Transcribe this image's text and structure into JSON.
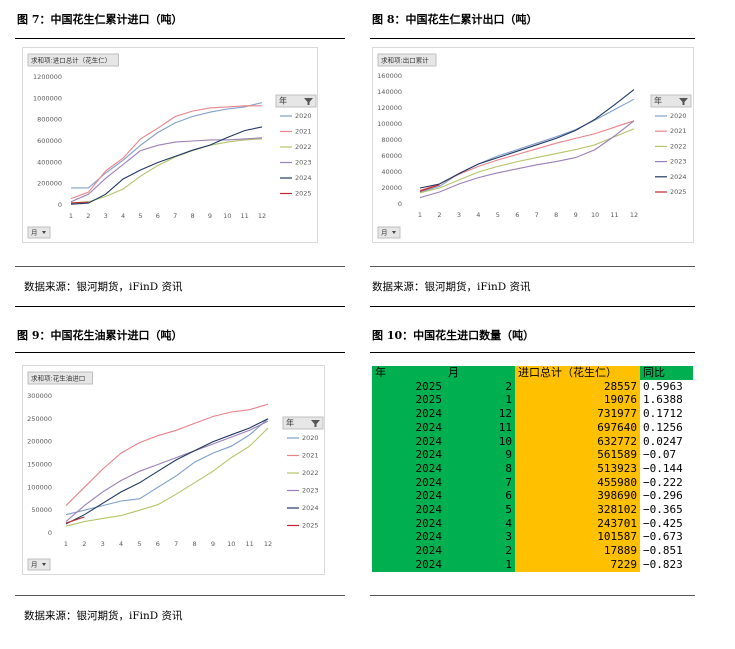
{
  "captions": [
    "图 7：中国花生仁累计进口（吨）",
    "图 8：中国花生仁累计出口（吨）",
    "图 9：中国花生油累计进口（吨）",
    "图 10：中国花生进口数量（吨）"
  ],
  "sources": [
    "数据来源：银河期货，iFinD 资讯",
    "数据来源：银河期货，iFinD 资讯",
    "数据来源：银河期货，iFinD 资讯"
  ],
  "chart_data": [
    {
      "type": "line",
      "title": "求和项:进口总计（花生仁）",
      "legend_title": "年",
      "x_filter": "月",
      "categories": [
        1,
        2,
        3,
        4,
        5,
        6,
        7,
        8,
        9,
        10,
        11,
        12
      ],
      "ylim": [
        0,
        1200000
      ],
      "yticks": [
        0,
        200000,
        400000,
        600000,
        800000,
        1000000,
        1200000
      ],
      "legend": "right",
      "series": [
        {
          "name": "2020",
          "color": "#7f9fcc",
          "values": [
            160000,
            160000,
            300000,
            420000,
            560000,
            680000,
            770000,
            830000,
            870000,
            900000,
            920000,
            960000
          ]
        },
        {
          "name": "2021",
          "color": "#e8838a",
          "values": [
            60000,
            120000,
            320000,
            440000,
            620000,
            720000,
            830000,
            880000,
            910000,
            920000,
            930000,
            930000
          ]
        },
        {
          "name": "2022",
          "color": "#b5c46a",
          "values": [
            20000,
            30000,
            80000,
            150000,
            270000,
            370000,
            450000,
            510000,
            560000,
            590000,
            610000,
            620000
          ]
        },
        {
          "name": "2023",
          "color": "#9b7fb8",
          "values": [
            30000,
            100000,
            250000,
            380000,
            510000,
            560000,
            590000,
            600000,
            610000,
            610000,
            620000,
            630000
          ]
        },
        {
          "name": "2024",
          "color": "#1f3864",
          "values": [
            7229,
            17889,
            101587,
            243701,
            328102,
            398690,
            455980,
            513923,
            561589,
            632772,
            697640,
            731977
          ]
        },
        {
          "name": "2025",
          "color": "#c0262d",
          "values": [
            19076,
            28557,
            null,
            null,
            null,
            null,
            null,
            null,
            null,
            null,
            null,
            null
          ]
        }
      ]
    },
    {
      "type": "line",
      "title": "求和项:出口累计",
      "legend_title": "年",
      "x_filter": "月",
      "categories": [
        1,
        2,
        3,
        4,
        5,
        6,
        7,
        8,
        9,
        10,
        11,
        12
      ],
      "ylim": [
        0,
        160000
      ],
      "yticks": [
        0,
        20000,
        40000,
        60000,
        80000,
        100000,
        120000,
        140000,
        160000
      ],
      "legend": "right",
      "series": [
        {
          "name": "2020",
          "color": "#7f9fcc",
          "values": [
            15000,
            22000,
            38000,
            50000,
            60000,
            68000,
            76000,
            84000,
            93000,
            105000,
            118000,
            131000
          ]
        },
        {
          "name": "2021",
          "color": "#e8838a",
          "values": [
            17000,
            25000,
            37000,
            47000,
            55000,
            62000,
            69000,
            76000,
            82000,
            88000,
            96000,
            104000
          ]
        },
        {
          "name": "2022",
          "color": "#b5c46a",
          "values": [
            14000,
            20000,
            30000,
            40000,
            47000,
            53000,
            58000,
            63000,
            68000,
            74000,
            84000,
            94000
          ]
        },
        {
          "name": "2023",
          "color": "#9b7fb8",
          "values": [
            8000,
            15000,
            25000,
            33000,
            39000,
            44000,
            49000,
            53000,
            58000,
            68000,
            85000,
            104000
          ]
        },
        {
          "name": "2024",
          "color": "#1f3864",
          "values": [
            20000,
            25000,
            38000,
            50000,
            58000,
            66000,
            74000,
            82000,
            92000,
            106000,
            124000,
            143000
          ]
        },
        {
          "name": "2025",
          "color": "#c0262d",
          "values": [
            16000,
            24000,
            null,
            null,
            null,
            null,
            null,
            null,
            null,
            null,
            null,
            null
          ]
        }
      ]
    },
    {
      "type": "line",
      "title": "求和项:花生油进口",
      "legend_title": "年",
      "x_filter": "月",
      "categories": [
        1,
        2,
        3,
        4,
        5,
        6,
        7,
        8,
        9,
        10,
        11,
        12
      ],
      "ylim": [
        0,
        300000
      ],
      "yticks": [
        0,
        50000,
        100000,
        150000,
        200000,
        250000,
        300000
      ],
      "legend": "right",
      "series": [
        {
          "name": "2020",
          "color": "#7f9fcc",
          "values": [
            40000,
            50000,
            60000,
            70000,
            75000,
            100000,
            125000,
            155000,
            175000,
            190000,
            215000,
            250000
          ]
        },
        {
          "name": "2021",
          "color": "#e8838a",
          "values": [
            60000,
            100000,
            140000,
            175000,
            198000,
            213000,
            225000,
            240000,
            255000,
            265000,
            270000,
            282000
          ]
        },
        {
          "name": "2022",
          "color": "#b5c46a",
          "values": [
            15000,
            25000,
            32000,
            38000,
            50000,
            62000,
            85000,
            110000,
            135000,
            165000,
            190000,
            230000
          ]
        },
        {
          "name": "2023",
          "color": "#9b7fb8",
          "values": [
            25000,
            60000,
            90000,
            115000,
            135000,
            150000,
            165000,
            180000,
            195000,
            210000,
            225000,
            245000
          ]
        },
        {
          "name": "2024",
          "color": "#1f3864",
          "values": [
            20000,
            40000,
            65000,
            90000,
            110000,
            135000,
            160000,
            180000,
            200000,
            215000,
            230000,
            250000
          ]
        },
        {
          "name": "2025",
          "color": "#c0262d",
          "values": [
            22000,
            35000,
            null,
            null,
            null,
            null,
            null,
            null,
            null,
            null,
            null,
            null
          ]
        }
      ]
    }
  ],
  "table": {
    "header": [
      "年",
      "月",
      "进口总计（花生仁）",
      "同比"
    ],
    "rows": [
      [
        "2025",
        "2",
        "28557",
        "0.5963"
      ],
      [
        "2025",
        "1",
        "19076",
        "1.6388"
      ],
      [
        "2024",
        "12",
        "731977",
        "0.1712"
      ],
      [
        "2024",
        "11",
        "697640",
        "0.1256"
      ],
      [
        "2024",
        "10",
        "632772",
        "0.0247"
      ],
      [
        "2024",
        "9",
        "561589",
        "−0.07"
      ],
      [
        "2024",
        "8",
        "513923",
        "−0.144"
      ],
      [
        "2024",
        "7",
        "455980",
        "−0.222"
      ],
      [
        "2024",
        "6",
        "398690",
        "−0.296"
      ],
      [
        "2024",
        "5",
        "328102",
        "−0.365"
      ],
      [
        "2024",
        "4",
        "243701",
        "−0.425"
      ],
      [
        "2024",
        "3",
        "101587",
        "−0.673"
      ],
      [
        "2024",
        "2",
        "17889",
        "−0.851"
      ],
      [
        "2024",
        "1",
        "7229",
        "−0.823"
      ]
    ]
  }
}
